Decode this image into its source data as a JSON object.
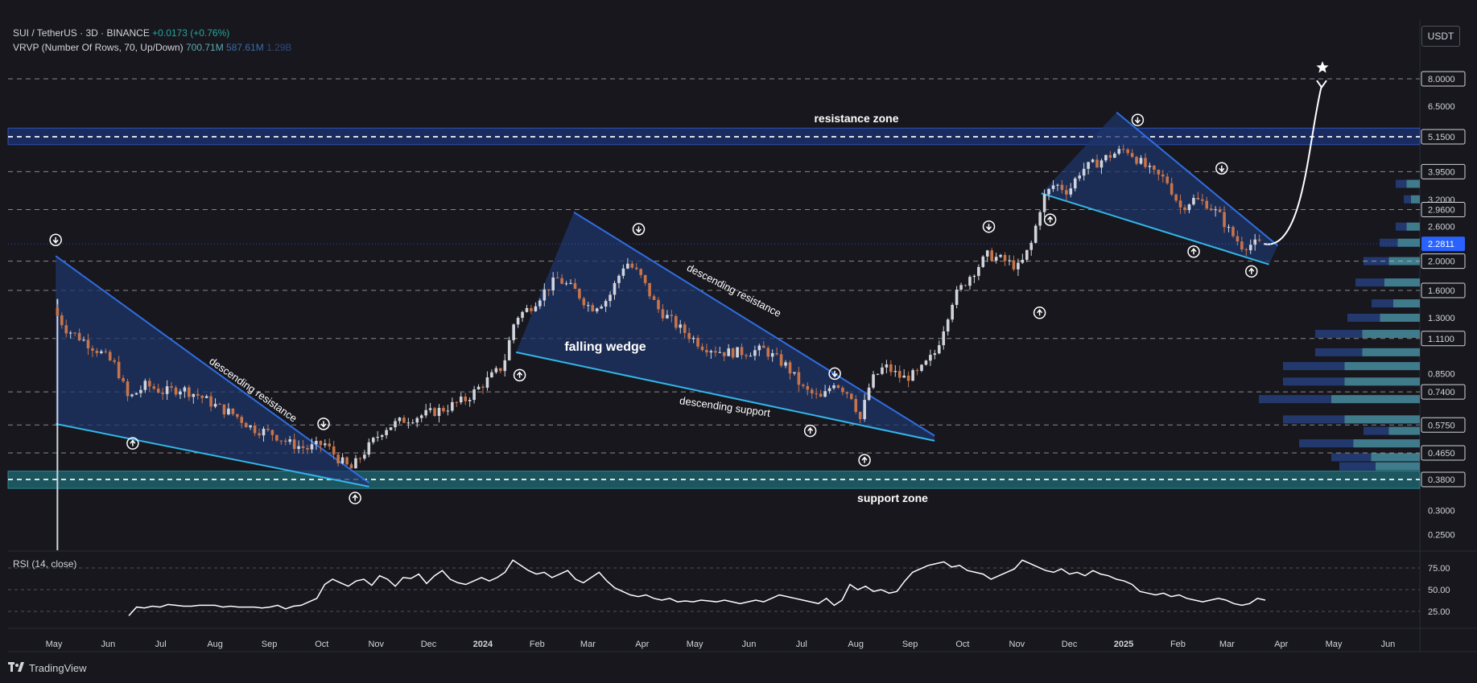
{
  "header": {
    "symbol": "SUI / TetherUS · 3D · BINANCE",
    "change": "+0.0173 (+0.76%)",
    "indicator": "VRVP (Number Of Rows, 70, Up/Down)",
    "vol_up": "700.71M",
    "vol_down": "587.61M",
    "vol_total": "1.29B",
    "currency": "USDT"
  },
  "brand": "TradingView",
  "colors": {
    "background": "#17171d",
    "up": "#d1d4dc",
    "down": "#c7744a",
    "pattern_fill": "#1f3568",
    "resistance_line": "#2f6de0",
    "support_line": "#33b6e8",
    "resistance_zone": "#1b2d63",
    "support_zone": "#1d5a63",
    "price_badge": "#2962ff"
  },
  "chart_data": {
    "type": "candlestick",
    "title": "SUI / TetherUS · 3D · BINANCE",
    "y_scale": "log",
    "y_ticks": [
      "8.0000",
      "6.5000",
      "5.1500",
      "3.9500",
      "3.2000",
      "2.9600",
      "2.6000",
      "2.0000",
      "1.6000",
      "1.3000",
      "1.1100",
      "0.8500",
      "0.7400",
      "0.5750",
      "0.4650",
      "0.3800",
      "0.3000",
      "0.2500"
    ],
    "x_labels": [
      "May",
      "Jun",
      "Jul",
      "Aug",
      "Sep",
      "Oct",
      "Nov",
      "Dec",
      "2024",
      "Feb",
      "Mar",
      "Apr",
      "May",
      "Jun",
      "Jul",
      "Aug",
      "Sep",
      "Oct",
      "Nov",
      "Dec",
      "2025",
      "Feb",
      "Mar",
      "Apr",
      "May",
      "Jun"
    ],
    "last_price": "2.2811",
    "price_path": [
      [
        "2023-05-03",
        1.4
      ],
      [
        "2023-05-10",
        1.2
      ],
      [
        "2023-05-20",
        1.1
      ],
      [
        "2023-05-30",
        1.0
      ],
      [
        "2023-06-08",
        0.9
      ],
      [
        "2023-06-15",
        0.7
      ],
      [
        "2023-06-25",
        0.78
      ],
      [
        "2023-07-05",
        0.74
      ],
      [
        "2023-07-15",
        0.76
      ],
      [
        "2023-07-25",
        0.72
      ],
      [
        "2023-08-05",
        0.66
      ],
      [
        "2023-08-15",
        0.62
      ],
      [
        "2023-08-25",
        0.56
      ],
      [
        "2023-09-05",
        0.54
      ],
      [
        "2023-09-15",
        0.5
      ],
      [
        "2023-09-25",
        0.48
      ],
      [
        "2023-10-05",
        0.5
      ],
      [
        "2023-10-12",
        0.45
      ],
      [
        "2023-10-20",
        0.41
      ],
      [
        "2023-10-28",
        0.47
      ],
      [
        "2023-11-08",
        0.56
      ],
      [
        "2023-11-20",
        0.6
      ],
      [
        "2023-11-30",
        0.62
      ],
      [
        "2023-12-12",
        0.65
      ],
      [
        "2023-12-25",
        0.7
      ],
      [
        "2024-01-05",
        0.8
      ],
      [
        "2024-01-15",
        0.9
      ],
      [
        "2024-01-22",
        1.3
      ],
      [
        "2024-01-30",
        1.4
      ],
      [
        "2024-02-08",
        1.6
      ],
      [
        "2024-02-15",
        1.75
      ],
      [
        "2024-02-25",
        1.6
      ],
      [
        "2024-03-05",
        1.4
      ],
      [
        "2024-03-15",
        1.5
      ],
      [
        "2024-03-25",
        2.0
      ],
      [
        "2024-04-02",
        1.8
      ],
      [
        "2024-04-12",
        1.4
      ],
      [
        "2024-04-25",
        1.2
      ],
      [
        "2024-05-08",
        1.05
      ],
      [
        "2024-05-20",
        1.0
      ],
      [
        "2024-06-01",
        1.0
      ],
      [
        "2024-06-12",
        1.02
      ],
      [
        "2024-06-25",
        0.9
      ],
      [
        "2024-07-05",
        0.75
      ],
      [
        "2024-07-15",
        0.7
      ],
      [
        "2024-07-22",
        0.8
      ],
      [
        "2024-08-01",
        0.72
      ],
      [
        "2024-08-06",
        0.6
      ],
      [
        "2024-08-12",
        0.8
      ],
      [
        "2024-08-20",
        0.9
      ],
      [
        "2024-08-30",
        0.82
      ],
      [
        "2024-09-08",
        0.85
      ],
      [
        "2024-09-18",
        1.0
      ],
      [
        "2024-09-28",
        1.5
      ],
      [
        "2024-10-08",
        1.8
      ],
      [
        "2024-10-18",
        2.1
      ],
      [
        "2024-10-28",
        2.0
      ],
      [
        "2024-11-05",
        1.9
      ],
      [
        "2024-11-12",
        2.3
      ],
      [
        "2024-11-18",
        3.2
      ],
      [
        "2024-11-25",
        3.6
      ],
      [
        "2024-12-03",
        3.4
      ],
      [
        "2024-12-10",
        4.0
      ],
      [
        "2024-12-18",
        4.2
      ],
      [
        "2024-12-28",
        4.5
      ],
      [
        "2025-01-05",
        4.7
      ],
      [
        "2025-01-12",
        4.3
      ],
      [
        "2025-01-20",
        3.9
      ],
      [
        "2025-01-28",
        3.7
      ],
      [
        "2025-02-05",
        3.0
      ],
      [
        "2025-02-12",
        3.2
      ],
      [
        "2025-02-20",
        3.1
      ],
      [
        "2025-02-28",
        2.8
      ],
      [
        "2025-03-05",
        2.5
      ],
      [
        "2025-03-12",
        2.25
      ],
      [
        "2025-03-20",
        2.28
      ]
    ],
    "annotations": [
      "descending resistance",
      "falling wedge",
      "descending resistance",
      "descending support",
      "resistance zone",
      "support zone"
    ],
    "rsi": {
      "label": "RSI (14, close)",
      "ticks": [
        "75.00",
        "50.00",
        "25.00"
      ],
      "values": [
        20,
        30,
        29,
        31,
        30,
        33,
        32,
        31,
        31,
        32,
        32,
        32,
        30,
        31,
        30,
        30,
        30,
        29,
        30,
        32,
        28,
        31,
        32,
        36,
        40,
        56,
        62,
        58,
        54,
        60,
        62,
        55,
        66,
        62,
        54,
        64,
        63,
        68,
        57,
        66,
        72,
        62,
        58,
        56,
        60,
        64,
        60,
        64,
        70,
        84,
        78,
        72,
        68,
        70,
        64,
        68,
        72,
        62,
        58,
        64,
        70,
        60,
        52,
        48,
        44,
        42,
        44,
        40,
        38,
        40,
        36,
        37,
        36,
        38,
        37,
        36,
        38,
        36,
        34,
        36,
        38,
        36,
        40,
        44,
        42,
        40,
        38,
        36,
        34,
        40,
        32,
        38,
        56,
        50,
        54,
        48,
        50,
        46,
        48,
        60,
        70,
        74,
        78,
        80,
        82,
        76,
        78,
        72,
        70,
        68,
        62,
        66,
        70,
        74,
        84,
        80,
        76,
        72,
        70,
        74,
        68,
        70,
        66,
        72,
        68,
        66,
        62,
        60,
        56,
        48,
        46,
        44,
        46,
        42,
        44,
        40,
        38,
        36,
        38,
        40,
        38,
        34,
        32,
        34,
        40,
        38
      ]
    }
  }
}
